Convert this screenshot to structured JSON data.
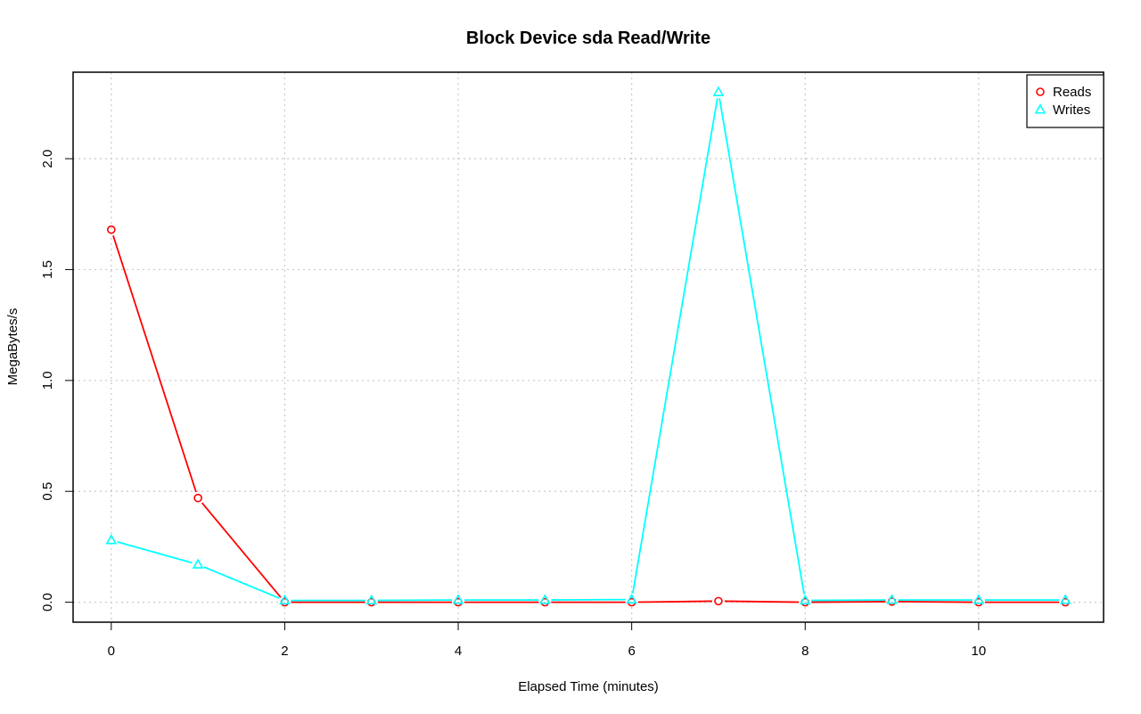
{
  "chart_data": {
    "type": "line",
    "title": "Block Device sda Read/Write",
    "xlabel": "Elapsed Time (minutes)",
    "ylabel": "MegaBytes/s",
    "xlim": [
      -0.44,
      11.44
    ],
    "ylim": [
      -0.09,
      2.39
    ],
    "x_ticks": [
      0,
      2,
      4,
      6,
      8,
      10
    ],
    "y_ticks": [
      0.0,
      0.5,
      1.0,
      1.5,
      2.0
    ],
    "x_tick_labels": [
      "0",
      "2",
      "4",
      "6",
      "8",
      "10"
    ],
    "y_tick_labels": [
      "0.0",
      "0.5",
      "1.0",
      "1.5",
      "2.0"
    ],
    "grid": true,
    "legend_position": "top-right",
    "x": [
      0,
      1,
      2,
      3,
      4,
      5,
      6,
      7,
      8,
      9,
      10,
      11
    ],
    "series": [
      {
        "name": "Reads",
        "color": "#ff0000",
        "marker": "circle",
        "values": [
          1.68,
          0.47,
          0.0,
          0.0,
          0.0,
          0.0,
          0.0,
          0.005,
          0.0,
          0.003,
          0.0,
          0.0
        ]
      },
      {
        "name": "Writes",
        "color": "#00ffff",
        "marker": "triangle",
        "values": [
          0.28,
          0.17,
          0.008,
          0.008,
          0.01,
          0.01,
          0.012,
          2.3,
          0.008,
          0.01,
          0.01,
          0.01
        ]
      }
    ]
  }
}
